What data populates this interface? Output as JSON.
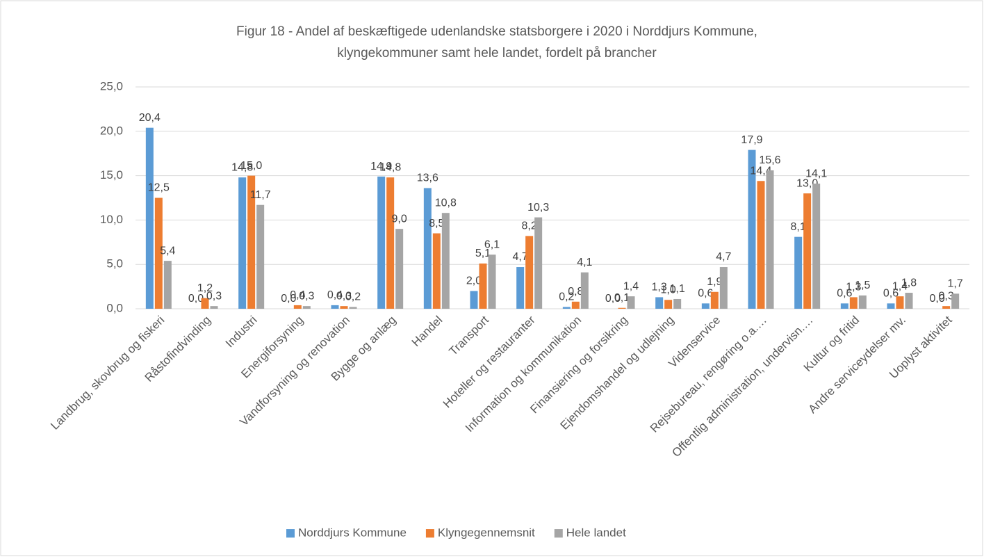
{
  "chart_data": {
    "type": "bar",
    "title": [
      "Figur 18 - Andel af beskæftigede udenlandske statsborgere i 2020 i Norddjurs Kommune,",
      "klyngekommuner samt hele landet, fordelt på brancher"
    ],
    "categories": [
      "Landbrug, skovbrug og fiskeri",
      "Råstofindvinding",
      "Industri",
      "Energiforsyning",
      "Vandforsyning og renovation",
      "Bygge og anlæg",
      "Handel",
      "Transport",
      "Hoteller og restauranter",
      "Information og kommunikation",
      "Finansiering og forsikring",
      "Ejendomshandel og udlejning",
      "Videnservice",
      "Rejsebureau, rengøring o.a.…",
      "Offentlig administration, undervisn.…",
      "Kultur og fritid",
      "Andre serviceydelser  mv.",
      "Uoplyst aktivitet"
    ],
    "series": [
      {
        "name": "Norddjurs Kommune",
        "color": "#5b9bd5",
        "values": [
          20.4,
          0.0,
          14.8,
          0.0,
          0.4,
          14.9,
          13.6,
          2.0,
          4.7,
          0.2,
          0.0,
          1.3,
          0.6,
          17.9,
          8.1,
          0.6,
          0.6,
          0.0
        ],
        "value_labels": [
          "20,4",
          "0,0",
          "14,8",
          "0,0",
          "0,4",
          "14,9",
          "13,6",
          "2,0",
          "4,7",
          "0,2",
          "0,0",
          "1,3",
          "0,6",
          "17,9",
          "8,1",
          "0,6",
          "0,6",
          "0,0"
        ]
      },
      {
        "name": "Klyngegennemsnit",
        "color": "#ed7d31",
        "values": [
          12.5,
          1.2,
          15.0,
          0.4,
          0.3,
          14.8,
          8.5,
          5.1,
          8.2,
          0.8,
          0.1,
          1.0,
          1.9,
          14.4,
          13.0,
          1.3,
          1.4,
          0.3
        ],
        "value_labels": [
          "12,5",
          "1,2",
          "15,0",
          "0,4",
          "0,3",
          "14,8",
          "8,5",
          "5,1",
          "8,2",
          "0,8",
          "0,1",
          "1,0",
          "1,9",
          "14,4",
          "13,0",
          "1,3",
          "1,4",
          "0,3"
        ]
      },
      {
        "name": "Hele landet",
        "color": "#a5a5a5",
        "values": [
          5.4,
          0.3,
          11.7,
          0.3,
          0.2,
          9.0,
          10.8,
          6.1,
          10.3,
          4.1,
          1.4,
          1.1,
          4.7,
          15.6,
          14.1,
          1.5,
          1.8,
          1.7
        ],
        "value_labels": [
          "5,4",
          "0,3",
          "11,7",
          "0,3",
          "0,2",
          "9,0",
          "10,8",
          "6,1",
          "10,3",
          "4,1",
          "1,4",
          "1,1",
          "4,7",
          "15,6",
          "14,1",
          "1,5",
          "1,8",
          "1,7"
        ]
      }
    ],
    "ylim": [
      0,
      25
    ],
    "yticks": [
      {
        "value": 0,
        "label": "0,0"
      },
      {
        "value": 5,
        "label": "5,0"
      },
      {
        "value": 10,
        "label": "10,0"
      },
      {
        "value": 15,
        "label": "15,0"
      },
      {
        "value": 20,
        "label": "20,0"
      },
      {
        "value": 25,
        "label": "25,0"
      }
    ],
    "grid": true,
    "legend": "bottom"
  }
}
